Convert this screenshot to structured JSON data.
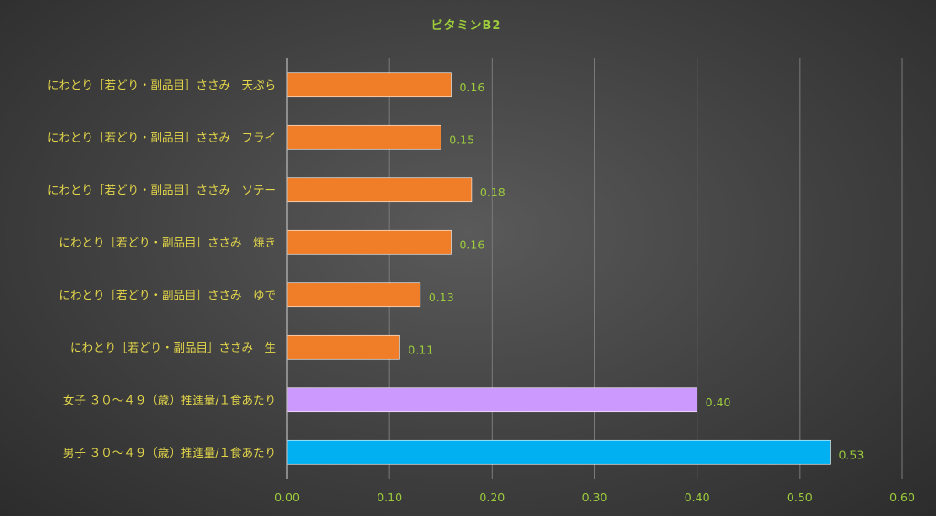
{
  "chart_data": {
    "type": "bar",
    "orientation": "horizontal",
    "title": "ビタミンB2",
    "categories": [
      "にわとり［若どり・副品目］ささみ　天ぷら",
      "にわとり［若どり・副品目］ささみ　フライ",
      "にわとり［若どり・副品目］ささみ　ソテー",
      "にわとり［若どり・副品目］ささみ　焼き",
      "にわとり［若どり・副品目］ささみ　ゆで",
      "にわとり［若どり・副品目］ささみ　生",
      "女子 ３０～４９（歳）推進量/１食あたり",
      "男子 ３０～４９（歳）推進量/１食あたり"
    ],
    "values": [
      0.16,
      0.15,
      0.18,
      0.16,
      0.13,
      0.11,
      0.4,
      0.53
    ],
    "value_labels": [
      "0.16",
      "0.15",
      "0.18",
      "0.16",
      "0.13",
      "0.11",
      "0.40",
      "0.53"
    ],
    "bar_colors": [
      "#f07d28",
      "#f07d28",
      "#f07d28",
      "#f07d28",
      "#f07d28",
      "#f07d28",
      "#cc99ff",
      "#00b0f0"
    ],
    "xlim": [
      0,
      0.6
    ],
    "xticks": [
      0,
      0.1,
      0.2,
      0.3,
      0.4,
      0.5,
      0.6
    ],
    "xtick_labels": [
      "0.00",
      "0.10",
      "0.20",
      "0.30",
      "0.40",
      "0.50",
      "0.60"
    ],
    "grid": true,
    "legend": "none"
  }
}
